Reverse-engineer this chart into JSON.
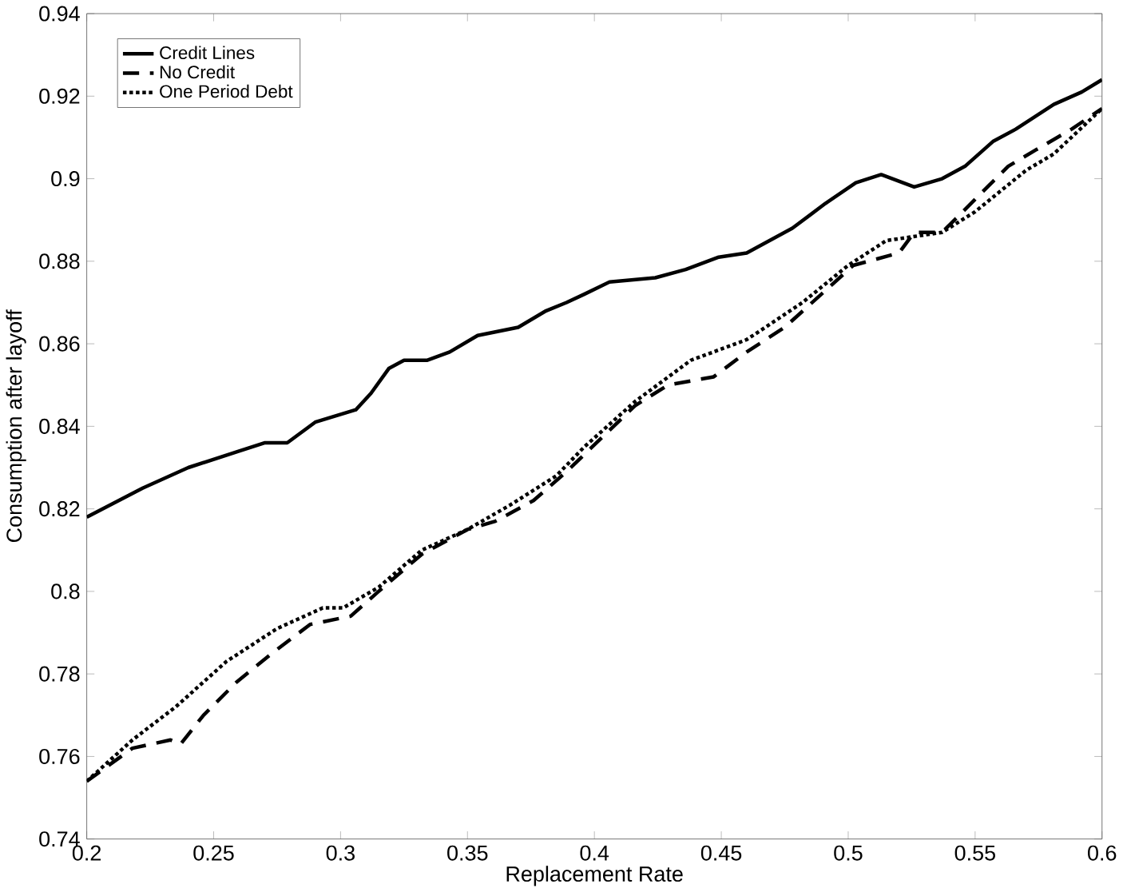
{
  "chart_data": {
    "type": "line",
    "xlabel": "Replacement Rate",
    "ylabel": "Consumption after layoff",
    "xlim": [
      0.2,
      0.6
    ],
    "ylim": [
      0.74,
      0.94
    ],
    "xticks": [
      0.2,
      0.25,
      0.3,
      0.35,
      0.4,
      0.45,
      0.5,
      0.55,
      0.6
    ],
    "yticks": [
      0.74,
      0.76,
      0.78,
      0.8,
      0.82,
      0.84,
      0.86,
      0.88,
      0.9,
      0.92,
      0.94
    ],
    "grid": false,
    "legend": "top left",
    "marker": "none",
    "series": [
      {
        "name": "Credit Lines",
        "color": "#000000",
        "line_style": "solid",
        "x": [
          0.2,
          0.222,
          0.24,
          0.26,
          0.27,
          0.279,
          0.29,
          0.306,
          0.312,
          0.319,
          0.325,
          0.334,
          0.343,
          0.354,
          0.37,
          0.381,
          0.389,
          0.396,
          0.406,
          0.424,
          0.436,
          0.449,
          0.46,
          0.478,
          0.491,
          0.503,
          0.513,
          0.526,
          0.537,
          0.546,
          0.557,
          0.566,
          0.581,
          0.592,
          0.6
        ],
        "values": [
          0.818,
          0.825,
          0.83,
          0.834,
          0.836,
          0.836,
          0.841,
          0.844,
          0.848,
          0.854,
          0.856,
          0.856,
          0.858,
          0.862,
          0.864,
          0.868,
          0.87,
          0.872,
          0.875,
          0.876,
          0.878,
          0.881,
          0.882,
          0.888,
          0.894,
          0.899,
          0.901,
          0.898,
          0.9,
          0.903,
          0.909,
          0.912,
          0.918,
          0.921,
          0.924
        ]
      },
      {
        "name": "No Credit",
        "color": "#000000",
        "line_style": "dashed",
        "x": [
          0.2,
          0.218,
          0.233,
          0.237,
          0.246,
          0.259,
          0.273,
          0.288,
          0.304,
          0.315,
          0.332,
          0.35,
          0.361,
          0.376,
          0.389,
          0.416,
          0.429,
          0.447,
          0.46,
          0.475,
          0.502,
          0.52,
          0.526,
          0.537,
          0.55,
          0.563,
          0.574,
          0.588,
          0.6
        ],
        "values": [
          0.754,
          0.762,
          0.764,
          0.763,
          0.77,
          0.778,
          0.785,
          0.792,
          0.794,
          0.8,
          0.809,
          0.815,
          0.817,
          0.822,
          0.829,
          0.845,
          0.85,
          0.852,
          0.858,
          0.864,
          0.879,
          0.882,
          0.887,
          0.887,
          0.895,
          0.903,
          0.907,
          0.912,
          0.917
        ]
      },
      {
        "name": "One Period Debt",
        "color": "#000000",
        "line_style": "dotted",
        "x": [
          0.2,
          0.218,
          0.235,
          0.255,
          0.275,
          0.293,
          0.301,
          0.315,
          0.332,
          0.35,
          0.367,
          0.385,
          0.396,
          0.416,
          0.438,
          0.46,
          0.482,
          0.5,
          0.515,
          0.537,
          0.55,
          0.57,
          0.581,
          0.6
        ],
        "values": [
          0.754,
          0.764,
          0.772,
          0.783,
          0.791,
          0.796,
          0.796,
          0.801,
          0.81,
          0.815,
          0.821,
          0.828,
          0.835,
          0.846,
          0.856,
          0.861,
          0.87,
          0.879,
          0.885,
          0.887,
          0.892,
          0.902,
          0.906,
          0.917
        ]
      }
    ]
  }
}
